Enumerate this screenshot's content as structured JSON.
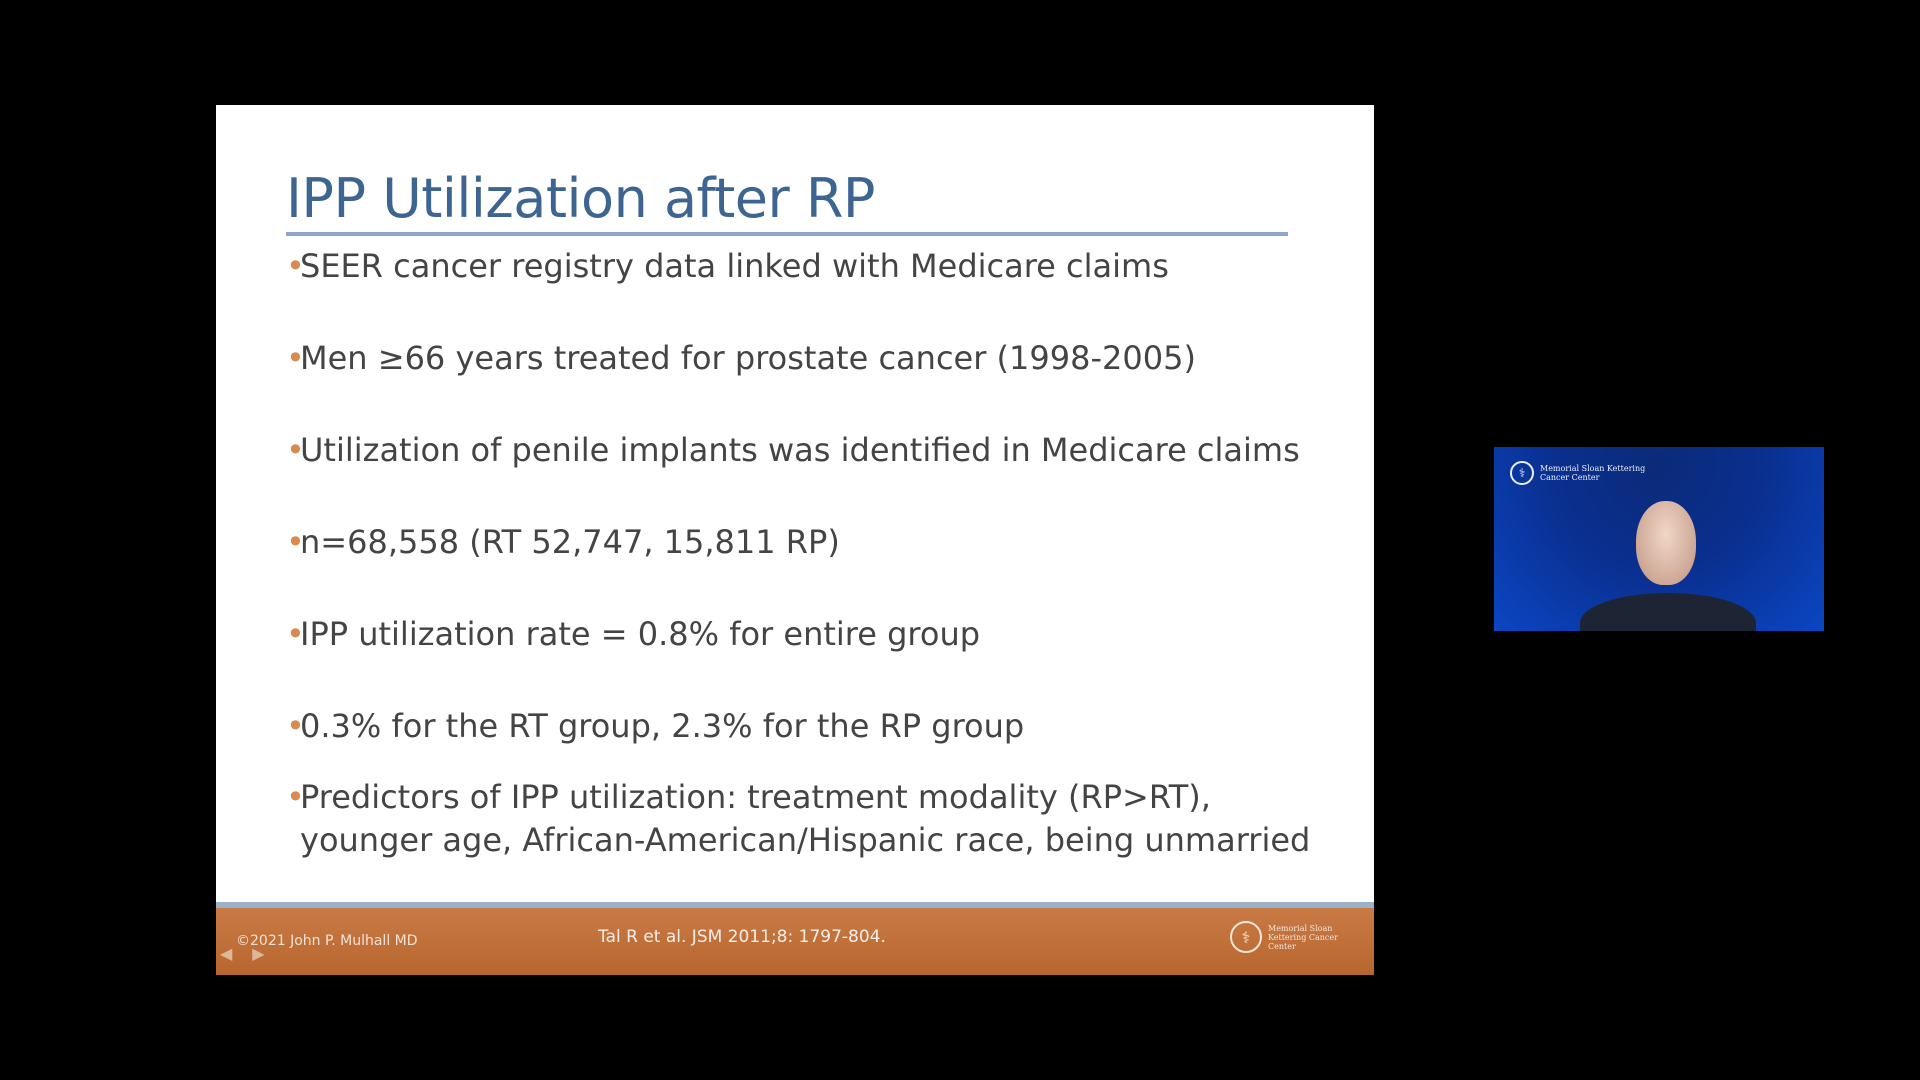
{
  "slide": {
    "title": "IPP Utilization after RP",
    "bullets": [
      "SEER cancer registry data linked with Medicare claims",
      "Men ≥66 years treated for prostate cancer (1998-2005)",
      "Utilization of penile implants was identified in Medicare claims",
      "n=68,558 (RT 52,747, 15,811 RP)",
      "IPP utilization rate = 0.8% for entire group",
      "0.3% for the RT group, 2.3% for the RP group",
      "Predictors of IPP utilization: treatment modality (RP>RT), younger age, African-American/Hispanic race, being unmarried"
    ],
    "footer": {
      "copyright": "©2021 John P. Mulhall MD",
      "citation": "Tal R et al. JSM 2011;8: 1797-804.",
      "logo_text": "Memorial Sloan Kettering Cancer Center"
    }
  },
  "webcam": {
    "logo_text": "Memorial Sloan Kettering Cancer Center"
  },
  "colors": {
    "title": "#3e6591",
    "bullet_marker": "#d98a4e",
    "footer_bar": "#c97a44",
    "webcam_bg": "#0a2f8f"
  }
}
